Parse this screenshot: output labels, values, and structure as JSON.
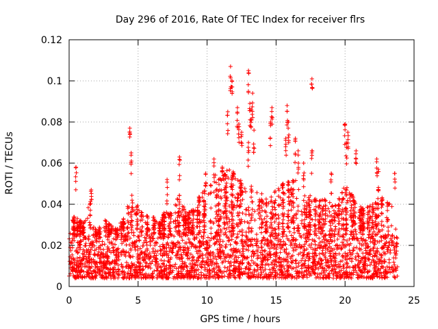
{
  "chart_data": {
    "type": "scatter",
    "title": "Day 296 of 2016, Rate Of TEC Index for receiver flrs",
    "xlabel": "GPS time / hours",
    "ylabel": "ROTI / TECUs",
    "xlim": [
      0,
      25
    ],
    "ylim": [
      0,
      0.12
    ],
    "x_ticks": [
      0,
      5,
      10,
      15,
      20,
      25
    ],
    "x_tick_labels": [
      "0",
      "5",
      "10",
      "15",
      "20",
      "25"
    ],
    "y_ticks": [
      0,
      0.02,
      0.04,
      0.06,
      0.08,
      0.1,
      0.12
    ],
    "y_tick_labels": [
      "0",
      "0.02",
      "0.04",
      "0.06",
      "0.08",
      "0.1",
      "0.12"
    ],
    "grid": true,
    "marker": "+",
    "color": "#ff0000",
    "series": [
      {
        "name": "ROTI",
        "bulk_band": {
          "x_range": [
            0,
            23.8
          ],
          "y_typical_range": [
            0.004,
            0.025
          ],
          "density": "dense"
        },
        "envelope": [
          [
            0.0,
            0.028
          ],
          [
            0.5,
            0.036
          ],
          [
            1.0,
            0.03
          ],
          [
            1.5,
            0.043
          ],
          [
            2.0,
            0.026
          ],
          [
            2.5,
            0.033
          ],
          [
            3.0,
            0.03
          ],
          [
            3.5,
            0.028
          ],
          [
            4.0,
            0.035
          ],
          [
            4.5,
            0.045
          ],
          [
            5.0,
            0.04
          ],
          [
            5.5,
            0.035
          ],
          [
            6.0,
            0.035
          ],
          [
            6.5,
            0.03
          ],
          [
            7.0,
            0.038
          ],
          [
            7.5,
            0.036
          ],
          [
            8.0,
            0.045
          ],
          [
            8.5,
            0.035
          ],
          [
            9.0,
            0.038
          ],
          [
            9.5,
            0.045
          ],
          [
            10.0,
            0.048
          ],
          [
            10.5,
            0.055
          ],
          [
            11.0,
            0.052
          ],
          [
            11.5,
            0.058
          ],
          [
            12.0,
            0.055
          ],
          [
            12.5,
            0.052
          ],
          [
            13.0,
            0.05
          ],
          [
            13.5,
            0.048
          ],
          [
            14.0,
            0.045
          ],
          [
            14.5,
            0.042
          ],
          [
            15.0,
            0.048
          ],
          [
            15.5,
            0.05
          ],
          [
            16.0,
            0.052
          ],
          [
            16.5,
            0.055
          ],
          [
            17.0,
            0.048
          ],
          [
            17.5,
            0.045
          ],
          [
            18.0,
            0.042
          ],
          [
            18.5,
            0.045
          ],
          [
            19.0,
            0.04
          ],
          [
            19.5,
            0.042
          ],
          [
            20.0,
            0.05
          ],
          [
            20.5,
            0.045
          ],
          [
            21.0,
            0.04
          ],
          [
            21.5,
            0.038
          ],
          [
            22.0,
            0.04
          ],
          [
            22.5,
            0.045
          ],
          [
            23.0,
            0.04
          ],
          [
            23.5,
            0.048
          ],
          [
            23.8,
            0.04
          ]
        ],
        "spikes": [
          [
            0.5,
            0.058
          ],
          [
            1.6,
            0.047
          ],
          [
            4.4,
            0.077
          ],
          [
            4.5,
            0.065
          ],
          [
            7.1,
            0.052
          ],
          [
            8.0,
            0.063
          ],
          [
            9.9,
            0.055
          ],
          [
            10.5,
            0.062
          ],
          [
            11.1,
            0.058
          ],
          [
            11.7,
            0.107
          ],
          [
            11.8,
            0.1
          ],
          [
            11.5,
            0.085
          ],
          [
            12.2,
            0.087
          ],
          [
            12.3,
            0.079
          ],
          [
            12.5,
            0.075
          ],
          [
            13.0,
            0.105
          ],
          [
            13.1,
            0.089
          ],
          [
            13.3,
            0.094
          ],
          [
            13.2,
            0.086
          ],
          [
            13.4,
            0.076
          ],
          [
            13.0,
            0.07
          ],
          [
            14.7,
            0.087
          ],
          [
            14.6,
            0.08
          ],
          [
            15.8,
            0.088
          ],
          [
            15.9,
            0.08
          ],
          [
            15.7,
            0.072
          ],
          [
            16.4,
            0.072
          ],
          [
            16.6,
            0.066
          ],
          [
            17.0,
            0.06
          ],
          [
            17.6,
            0.101
          ],
          [
            17.6,
            0.066
          ],
          [
            19.0,
            0.055
          ],
          [
            20.0,
            0.079
          ],
          [
            20.2,
            0.075
          ],
          [
            20.1,
            0.07
          ],
          [
            20.8,
            0.066
          ],
          [
            22.3,
            0.062
          ],
          [
            22.4,
            0.057
          ],
          [
            23.6,
            0.055
          ]
        ]
      }
    ]
  }
}
